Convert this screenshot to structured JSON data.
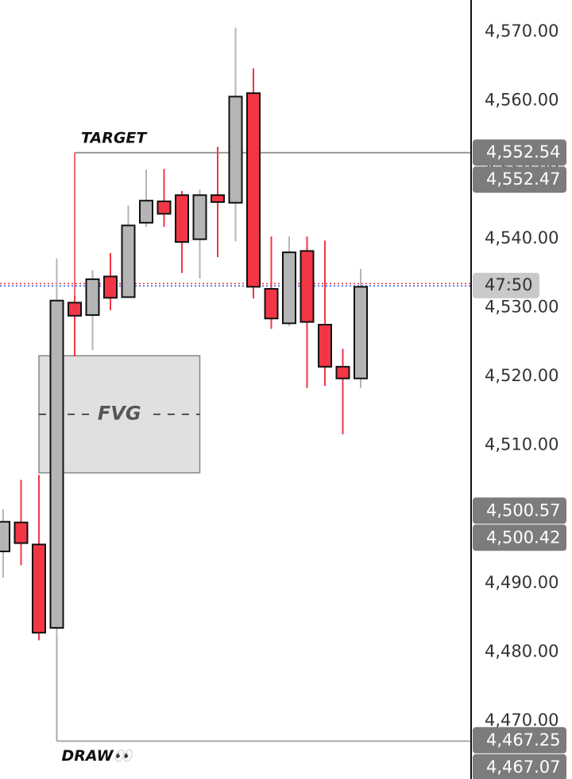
{
  "chart_data": {
    "type": "candlestick",
    "up_color": "#b5b5b5",
    "down_color": "#f23645",
    "open": [
      4494.6,
      4498.8,
      4495.6,
      4483.5,
      4530.7,
      4528.9,
      4534.5,
      4531.5,
      4542.3,
      4545.4,
      4546.3,
      4539.9,
      4546.3,
      4545.2,
      4561.1,
      4532.7,
      4527.7,
      4538.2,
      4527.5,
      4521.4,
      4519.7
    ],
    "high": [
      4500.7,
      4505.0,
      4505.7,
      4537.1,
      4531.7,
      4535.4,
      4537.9,
      4544.8,
      4550.0,
      4550.1,
      4546.9,
      4547.1,
      4553.3,
      4570.6,
      4564.7,
      4540.3,
      4540.3,
      4540.3,
      4539.7,
      4524.0,
      4535.6
    ],
    "low": [
      4490.8,
      4492.6,
      4481.7,
      4482.2,
      4522.9,
      4523.8,
      4529.6,
      4531.5,
      4541.7,
      4541.7,
      4535.0,
      4534.2,
      4537.3,
      4539.6,
      4531.3,
      4526.9,
      4527.3,
      4518.3,
      4518.6,
      4511.6,
      4518.3
    ],
    "close": [
      4498.9,
      4495.8,
      4482.8,
      4531.0,
      4528.8,
      4534.1,
      4531.4,
      4541.9,
      4545.5,
      4543.6,
      4539.5,
      4546.3,
      4545.3,
      4560.6,
      4533.0,
      4528.4,
      4538.0,
      4527.9,
      4521.4,
      4519.7,
      4533.0
    ],
    "ylim": [
      4461.57,
      4574.62
    ],
    "yticks": [
      {
        "value": 4470,
        "label": "4,470.00"
      },
      {
        "value": 4480,
        "label": "4,480.00"
      },
      {
        "value": 4490,
        "label": "4,490.00"
      },
      {
        "value": 4500,
        "label": "4,500.00"
      },
      {
        "value": 4510,
        "label": "4,510.00"
      },
      {
        "value": 4520,
        "label": "4,520.00"
      },
      {
        "value": 4530,
        "label": "4,530.00"
      },
      {
        "value": 4540,
        "label": "4,540.00"
      },
      {
        "value": 4550,
        "label": "4,550.00"
      },
      {
        "value": 4560,
        "label": "4,560.00"
      },
      {
        "value": 4570,
        "label": "4,570.00"
      }
    ],
    "price_labels": [
      {
        "value": 4552.54,
        "label": "4,552.54"
      },
      {
        "value": 4552.47,
        "label": "4,552.47"
      },
      {
        "value": 4500.57,
        "label": "4,500.57"
      },
      {
        "value": 4500.42,
        "label": "4,500.42"
      },
      {
        "value": 4467.25,
        "label": "4,467.25"
      },
      {
        "value": 4467.07,
        "label": "4,467.07"
      }
    ],
    "current_price": 4533.3,
    "countdown": "47:50",
    "fvg": {
      "label": "FVG",
      "top": 4523.0,
      "bottom": 4506.0
    },
    "target": {
      "label": "TARGET",
      "value": 4552.47
    },
    "draw": {
      "label": "DRAW👀",
      "value": 4467.07
    }
  }
}
